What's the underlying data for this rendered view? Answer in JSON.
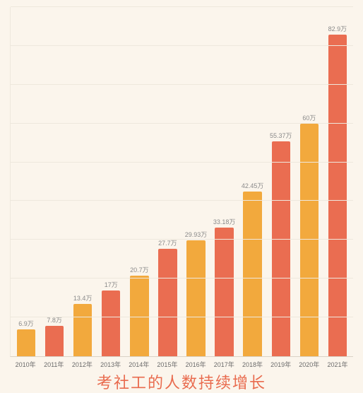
{
  "chart": {
    "type": "bar",
    "caption": "考社工的人数持续增长",
    "caption_color": "#e96b4e",
    "caption_fontsize": 22,
    "background_color": "#fbf5ec",
    "grid_color": "#eee8dd",
    "axis_color": "#d9d2c7",
    "ylim": [
      0,
      90
    ],
    "grid_steps": [
      10,
      20,
      30,
      40,
      50,
      60,
      70,
      80,
      90
    ],
    "bar_width": 0.66,
    "label_fontsize": 9,
    "colors": {
      "a": "#f2a93d",
      "b": "#ea6d51"
    },
    "bars": [
      {
        "year": "2010年",
        "value": 6.9,
        "label": "6.9万",
        "color": "a"
      },
      {
        "year": "2011年",
        "value": 7.8,
        "label": "7.8万",
        "color": "b"
      },
      {
        "year": "2012年",
        "value": 13.4,
        "label": "13.4万",
        "color": "a"
      },
      {
        "year": "2013年",
        "value": 17,
        "label": "17万",
        "color": "b"
      },
      {
        "year": "2014年",
        "value": 20.7,
        "label": "20.7万",
        "color": "a"
      },
      {
        "year": "2015年",
        "value": 27.7,
        "label": "27.7万",
        "color": "b"
      },
      {
        "year": "2016年",
        "value": 29.93,
        "label": "29.93万",
        "color": "a"
      },
      {
        "year": "2017年",
        "value": 33.18,
        "label": "33.18万",
        "color": "b"
      },
      {
        "year": "2018年",
        "value": 42.45,
        "label": "42.45万",
        "color": "a"
      },
      {
        "year": "2019年",
        "value": 55.37,
        "label": "55.37万",
        "color": "b"
      },
      {
        "year": "2020年",
        "value": 60,
        "label": "60万",
        "color": "a"
      },
      {
        "year": "2021年",
        "value": 82.9,
        "label": "82.9万",
        "color": "b"
      }
    ]
  }
}
